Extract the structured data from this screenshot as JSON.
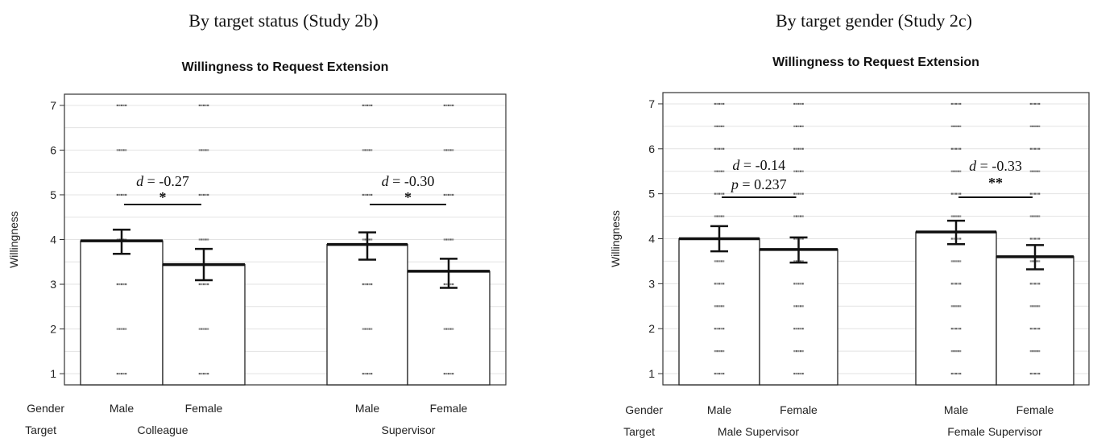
{
  "headings": {
    "left": "By target status (Study 2b)",
    "right": "By target gender (Study 2c)"
  },
  "row_labels": {
    "gender": "Gender",
    "target": "Target"
  },
  "chart_data": [
    {
      "type": "bar",
      "title": "Willingness to Request Extension",
      "ylabel": "Willingness",
      "ylim": [
        0.75,
        7.25
      ],
      "yticks": [
        1,
        2,
        3,
        4,
        5,
        6,
        7
      ],
      "grid": true,
      "groups": [
        {
          "target": "Colleague",
          "bars": [
            {
              "gender": "Male",
              "value": 3.97,
              "ci": [
                3.68,
                4.22
              ]
            },
            {
              "gender": "Female",
              "value": 3.44,
              "ci": [
                3.09,
                3.79
              ]
            }
          ],
          "annotation": {
            "d_label": "d",
            "d_value": "= -0.27",
            "p_label": "",
            "p_value": "",
            "sig": "*"
          }
        },
        {
          "target": "Supervisor",
          "bars": [
            {
              "gender": "Male",
              "value": 3.89,
              "ci": [
                3.55,
                4.16
              ]
            },
            {
              "gender": "Female",
              "value": 3.29,
              "ci": [
                2.92,
                3.57
              ]
            }
          ],
          "annotation": {
            "d_label": "d",
            "d_value": "= -0.30",
            "p_label": "",
            "p_value": "",
            "sig": "*"
          }
        }
      ],
      "points": [
        {
          "bar": 0,
          "values": [
            7,
            6,
            5,
            4,
            3,
            2,
            1
          ]
        },
        {
          "bar": 1,
          "values": [
            7,
            6,
            5,
            4,
            3,
            2,
            1
          ]
        },
        {
          "bar": 2,
          "values": [
            7,
            6,
            5,
            4,
            3,
            2,
            1
          ]
        },
        {
          "bar": 3,
          "values": [
            7,
            6,
            5,
            4,
            3,
            2,
            1
          ]
        }
      ]
    },
    {
      "type": "bar",
      "title": "Willingness to Request Extension",
      "ylabel": "Willingness",
      "ylim": [
        0.75,
        7.25
      ],
      "yticks": [
        1,
        2,
        3,
        4,
        5,
        6,
        7
      ],
      "grid": true,
      "groups": [
        {
          "target": "Male Supervisor",
          "bars": [
            {
              "gender": "Male",
              "value": 4.0,
              "ci": [
                3.72,
                4.28
              ]
            },
            {
              "gender": "Female",
              "value": 3.76,
              "ci": [
                3.47,
                4.03
              ]
            }
          ],
          "annotation": {
            "d_label": "d",
            "d_value": "= -0.14",
            "p_label": "p",
            "p_value": "= 0.237",
            "sig": ""
          }
        },
        {
          "target": "Female Supervisor",
          "bars": [
            {
              "gender": "Male",
              "value": 4.15,
              "ci": [
                3.88,
                4.4
              ]
            },
            {
              "gender": "Female",
              "value": 3.6,
              "ci": [
                3.32,
                3.86
              ]
            }
          ],
          "annotation": {
            "d_label": "d",
            "d_value": "= -0.33",
            "p_label": "",
            "p_value": "",
            "sig": "**"
          }
        }
      ],
      "points": [
        {
          "bar": 0,
          "values": [
            7,
            6.5,
            6,
            5.5,
            5,
            4.5,
            4,
            3.5,
            3,
            2.5,
            2,
            1.5,
            1
          ]
        },
        {
          "bar": 1,
          "values": [
            7,
            6.5,
            6,
            5.5,
            5,
            4.5,
            4,
            3.5,
            3,
            2.5,
            2,
            1.5,
            1
          ]
        },
        {
          "bar": 2,
          "values": [
            7,
            6.5,
            6,
            5.5,
            5,
            4.5,
            4,
            3.5,
            3,
            2.5,
            2,
            1.5,
            1
          ]
        },
        {
          "bar": 3,
          "values": [
            7,
            6.5,
            6,
            5.5,
            5,
            4.5,
            4,
            3.5,
            3,
            2.5,
            2,
            1.5,
            1
          ]
        }
      ]
    }
  ]
}
